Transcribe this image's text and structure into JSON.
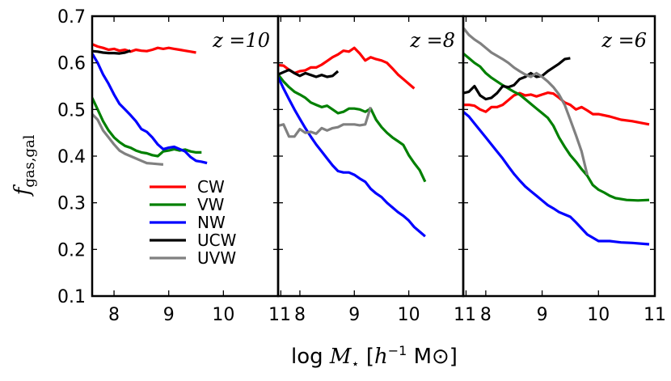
{
  "chart_data": {
    "type": "line",
    "ylabel": "f_gas,gal",
    "ylabel_main": "f",
    "ylabel_sub": "gas,gal",
    "xlabel": "log M⋆ [h⁻¹ M⊙]",
    "xlabel_prefix": "log ",
    "xlabel_M": "M",
    "xlabel_star": "⋆",
    "xlabel_unit_open": " [",
    "xlabel_h": "h",
    "xlabel_exp": "−1",
    "xlabel_msun": " M⊙]",
    "ylim": [
      0.1,
      0.7
    ],
    "yticks": [
      "0.1",
      "0.2",
      "0.3",
      "0.4",
      "0.5",
      "0.6",
      "0.7"
    ],
    "colors": {
      "CW": "#ff0000",
      "VW": "#008000",
      "NW": "#0000ff",
      "UCW": "#000000",
      "UVW": "#808080"
    },
    "legend": [
      "CW",
      "VW",
      "NW",
      "UCW",
      "UVW"
    ],
    "panels": [
      {
        "label": "z =10",
        "xlim": [
          7.6,
          11
        ],
        "xticks": [
          {
            "v": 8,
            "t": "8"
          },
          {
            "v": 9,
            "t": "9"
          },
          {
            "v": 10,
            "t": "10"
          }
        ],
        "series": [
          {
            "name": "CW",
            "x": [
              7.6,
              7.7,
              7.8,
              7.9,
              8.0,
              8.1,
              8.2,
              8.3,
              8.4,
              8.5,
              8.6,
              8.7,
              8.8,
              8.9,
              9.0,
              9.1,
              9.2,
              9.3,
              9.4,
              9.5
            ],
            "y": [
              0.64,
              0.635,
              0.632,
              0.628,
              0.63,
              0.626,
              0.628,
              0.624,
              0.628,
              0.626,
              0.625,
              0.628,
              0.632,
              0.63,
              0.632,
              0.63,
              0.628,
              0.626,
              0.624,
              0.622
            ]
          },
          {
            "name": "VW",
            "x": [
              7.6,
              7.7,
              7.8,
              7.9,
              8.0,
              8.1,
              8.2,
              8.3,
              8.4,
              8.5,
              8.6,
              8.7,
              8.8,
              8.9,
              9.0,
              9.1,
              9.2,
              9.3,
              9.4,
              9.5,
              9.6
            ],
            "y": [
              0.525,
              0.5,
              0.475,
              0.455,
              0.44,
              0.43,
              0.422,
              0.418,
              0.412,
              0.408,
              0.406,
              0.402,
              0.4,
              0.41,
              0.412,
              0.415,
              0.412,
              0.414,
              0.41,
              0.408,
              0.408
            ]
          },
          {
            "name": "NW",
            "x": [
              7.6,
              7.7,
              7.8,
              7.9,
              8.0,
              8.1,
              8.2,
              8.3,
              8.4,
              8.5,
              8.6,
              8.7,
              8.8,
              8.9,
              9.0,
              9.1,
              9.2,
              9.3,
              9.4,
              9.5,
              9.6,
              9.7
            ],
            "y": [
              0.62,
              0.6,
              0.575,
              0.555,
              0.532,
              0.512,
              0.5,
              0.488,
              0.475,
              0.458,
              0.452,
              0.44,
              0.425,
              0.415,
              0.418,
              0.42,
              0.415,
              0.41,
              0.398,
              0.39,
              0.388,
              0.385
            ]
          },
          {
            "name": "UCW",
            "x": [
              7.6,
              7.7,
              7.8,
              7.9,
              8.0,
              8.1,
              8.2,
              8.3
            ],
            "y": [
              0.625,
              0.624,
              0.622,
              0.621,
              0.621,
              0.62,
              0.622,
              0.626
            ]
          },
          {
            "name": "UVW",
            "x": [
              7.6,
              7.7,
              7.8,
              7.9,
              8.0,
              8.1,
              8.2,
              8.3,
              8.4,
              8.5,
              8.6,
              8.7,
              8.8,
              8.9
            ],
            "y": [
              0.49,
              0.478,
              0.455,
              0.44,
              0.425,
              0.412,
              0.405,
              0.4,
              0.395,
              0.39,
              0.385,
              0.384,
              0.383,
              0.382
            ]
          }
        ]
      },
      {
        "label": "z =8",
        "xlim": [
          7.6,
          11
        ],
        "xticks": [
          {
            "v": 7.65,
            "t": "11"
          },
          {
            "v": 8,
            "t": "8"
          },
          {
            "v": 9,
            "t": "9"
          },
          {
            "v": 10,
            "t": "10"
          }
        ],
        "series": [
          {
            "name": "CW",
            "x": [
              7.6,
              7.7,
              7.8,
              7.9,
              8.0,
              8.1,
              8.2,
              8.3,
              8.4,
              8.5,
              8.6,
              8.7,
              8.8,
              8.9,
              9.0,
              9.1,
              9.2,
              9.3,
              9.4,
              9.5,
              9.6,
              9.7,
              9.8,
              9.9,
              10.0,
              10.1
            ],
            "y": [
              0.595,
              0.594,
              0.585,
              0.578,
              0.582,
              0.584,
              0.59,
              0.59,
              0.596,
              0.604,
              0.612,
              0.618,
              0.626,
              0.624,
              0.632,
              0.62,
              0.605,
              0.612,
              0.608,
              0.605,
              0.6,
              0.588,
              0.575,
              0.565,
              0.555,
              0.545
            ]
          },
          {
            "name": "VW",
            "x": [
              7.6,
              7.7,
              7.8,
              7.9,
              8.0,
              8.1,
              8.2,
              8.3,
              8.4,
              8.5,
              8.6,
              8.7,
              8.8,
              8.9,
              9.0,
              9.1,
              9.2,
              9.3,
              9.4,
              9.5,
              9.6,
              9.7,
              9.8,
              9.9,
              10.0,
              10.1,
              10.2,
              10.3
            ],
            "y": [
              0.575,
              0.56,
              0.548,
              0.538,
              0.532,
              0.525,
              0.515,
              0.51,
              0.505,
              0.508,
              0.5,
              0.492,
              0.495,
              0.502,
              0.502,
              0.5,
              0.495,
              0.502,
              0.478,
              0.462,
              0.45,
              0.44,
              0.432,
              0.424,
              0.402,
              0.385,
              0.37,
              0.345
            ]
          },
          {
            "name": "NW",
            "x": [
              7.6,
              7.7,
              7.8,
              7.9,
              8.0,
              8.1,
              8.2,
              8.3,
              8.4,
              8.5,
              8.6,
              8.7,
              8.8,
              8.9,
              9.0,
              9.1,
              9.2,
              9.3,
              9.4,
              9.5,
              9.6,
              9.7,
              9.8,
              9.9,
              10.0,
              10.1,
              10.2,
              10.3
            ],
            "y": [
              0.57,
              0.545,
              0.522,
              0.5,
              0.48,
              0.46,
              0.442,
              0.425,
              0.41,
              0.395,
              0.38,
              0.368,
              0.365,
              0.365,
              0.36,
              0.352,
              0.345,
              0.33,
              0.32,
              0.312,
              0.3,
              0.29,
              0.28,
              0.272,
              0.262,
              0.248,
              0.238,
              0.228
            ]
          },
          {
            "name": "UCW",
            "x": [
              7.6,
              7.7,
              7.8,
              7.9,
              8.0,
              8.1,
              8.2,
              8.3,
              8.4,
              8.5,
              8.6,
              8.7
            ],
            "y": [
              0.575,
              0.58,
              0.585,
              0.578,
              0.572,
              0.578,
              0.574,
              0.57,
              0.574,
              0.57,
              0.572,
              0.582
            ]
          },
          {
            "name": "UVW",
            "x": [
              7.6,
              7.7,
              7.8,
              7.9,
              8.0,
              8.1,
              8.2,
              8.3,
              8.4,
              8.5,
              8.6,
              8.7,
              8.8,
              8.9,
              9.0,
              9.1,
              9.2,
              9.3
            ],
            "y": [
              0.465,
              0.468,
              0.442,
              0.442,
              0.458,
              0.45,
              0.452,
              0.448,
              0.46,
              0.455,
              0.46,
              0.462,
              0.468,
              0.468,
              0.468,
              0.466,
              0.468,
              0.505
            ]
          }
        ]
      },
      {
        "label": "z =6",
        "xlim": [
          7.6,
          11
        ],
        "xticks": [
          {
            "v": 7.65,
            "t": "11"
          },
          {
            "v": 8,
            "t": "8"
          },
          {
            "v": 9,
            "t": "9"
          },
          {
            "v": 10,
            "t": "10"
          },
          {
            "v": 11,
            "t": "11"
          }
        ],
        "series": [
          {
            "name": "CW",
            "x": [
              7.6,
              7.7,
              7.8,
              7.9,
              8.0,
              8.1,
              8.2,
              8.3,
              8.4,
              8.5,
              8.6,
              8.7,
              8.8,
              8.9,
              9.0,
              9.1,
              9.2,
              9.3,
              9.4,
              9.5,
              9.6,
              9.7,
              9.8,
              9.9,
              10.0,
              10.2,
              10.4,
              10.6,
              10.9
            ],
            "y": [
              0.51,
              0.51,
              0.508,
              0.5,
              0.495,
              0.505,
              0.505,
              0.51,
              0.52,
              0.53,
              0.535,
              0.53,
              0.532,
              0.528,
              0.532,
              0.536,
              0.534,
              0.525,
              0.515,
              0.51,
              0.5,
              0.505,
              0.498,
              0.49,
              0.49,
              0.485,
              0.478,
              0.475,
              0.468
            ]
          },
          {
            "name": "VW",
            "x": [
              7.6,
              7.7,
              7.8,
              7.9,
              8.0,
              8.1,
              8.2,
              8.3,
              8.4,
              8.5,
              8.6,
              8.7,
              8.8,
              8.9,
              9.0,
              9.1,
              9.2,
              9.3,
              9.4,
              9.5,
              9.6,
              9.7,
              9.8,
              9.9,
              10.0,
              10.1,
              10.2,
              10.3,
              10.5,
              10.7,
              10.9
            ],
            "y": [
              0.62,
              0.61,
              0.6,
              0.592,
              0.578,
              0.568,
              0.56,
              0.552,
              0.545,
              0.538,
              0.532,
              0.522,
              0.512,
              0.502,
              0.492,
              0.482,
              0.465,
              0.44,
              0.42,
              0.402,
              0.388,
              0.372,
              0.358,
              0.338,
              0.328,
              0.322,
              0.315,
              0.31,
              0.306,
              0.305,
              0.306
            ]
          },
          {
            "name": "NW",
            "x": [
              7.6,
              7.7,
              7.8,
              7.9,
              8.0,
              8.1,
              8.2,
              8.3,
              8.4,
              8.5,
              8.6,
              8.7,
              8.8,
              8.9,
              9.0,
              9.1,
              9.2,
              9.3,
              9.4,
              9.5,
              9.6,
              9.7,
              9.8,
              9.9,
              10.0,
              10.2,
              10.4,
              10.6,
              10.9
            ],
            "y": [
              0.495,
              0.485,
              0.47,
              0.455,
              0.44,
              0.425,
              0.41,
              0.395,
              0.378,
              0.362,
              0.348,
              0.335,
              0.325,
              0.315,
              0.305,
              0.295,
              0.288,
              0.28,
              0.275,
              0.27,
              0.258,
              0.245,
              0.232,
              0.225,
              0.218,
              0.218,
              0.215,
              0.214,
              0.211
            ]
          },
          {
            "name": "UCW",
            "x": [
              7.6,
              7.7,
              7.8,
              7.9,
              8.0,
              8.1,
              8.2,
              8.3,
              8.4,
              8.5,
              8.6,
              8.7,
              8.8,
              8.9,
              9.0,
              9.1,
              9.2,
              9.3,
              9.4,
              9.5
            ],
            "y": [
              0.535,
              0.538,
              0.55,
              0.53,
              0.522,
              0.525,
              0.535,
              0.55,
              0.548,
              0.552,
              0.565,
              0.57,
              0.578,
              0.57,
              0.572,
              0.582,
              0.59,
              0.598,
              0.608,
              0.61
            ]
          },
          {
            "name": "UVW",
            "x": [
              7.6,
              7.7,
              7.8,
              7.9,
              8.0,
              8.1,
              8.2,
              8.3,
              8.4,
              8.5,
              8.6,
              8.7,
              8.8,
              8.9,
              9.0,
              9.1,
              9.2,
              9.3,
              9.4,
              9.5,
              9.6,
              9.7,
              9.8
            ],
            "y": [
              0.675,
              0.66,
              0.65,
              0.642,
              0.632,
              0.622,
              0.615,
              0.608,
              0.6,
              0.59,
              0.582,
              0.575,
              0.57,
              0.578,
              0.57,
              0.56,
              0.548,
              0.532,
              0.51,
              0.478,
              0.445,
              0.41,
              0.36
            ]
          }
        ]
      }
    ]
  }
}
